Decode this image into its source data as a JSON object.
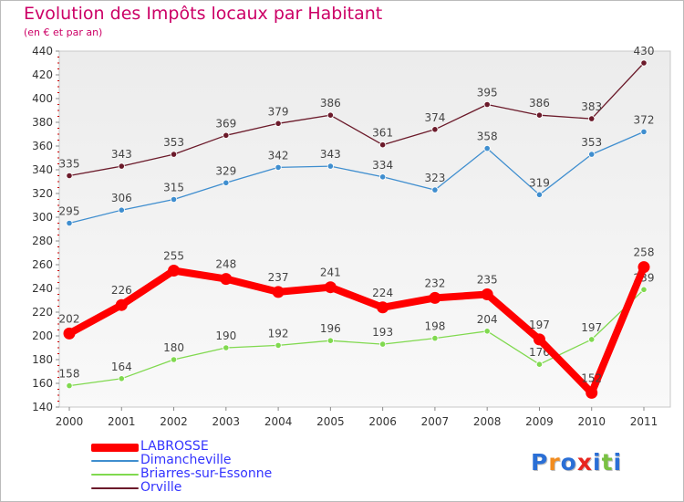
{
  "chart_data": {
    "type": "line",
    "title": "Evolution des Impôts locaux par Habitant",
    "subtitle": "(en € et par an)",
    "xlabel": "",
    "ylabel": "",
    "categories": [
      "2000",
      "2001",
      "2002",
      "2003",
      "2004",
      "2005",
      "2006",
      "2007",
      "2008",
      "2009",
      "2010",
      "2011"
    ],
    "ylim": [
      140,
      440
    ],
    "yticks": [
      140,
      160,
      180,
      200,
      220,
      240,
      260,
      280,
      300,
      320,
      340,
      360,
      380,
      400,
      420,
      440
    ],
    "grid": false,
    "legend_position": "bottom-left",
    "series": [
      {
        "name": "LABROSSE",
        "color": "#ff0000",
        "values": [
          202,
          226,
          255,
          248,
          237,
          241,
          224,
          232,
          235,
          197,
          152,
          258
        ]
      },
      {
        "name": "Dimancheville",
        "color": "#3f8ecf",
        "values": [
          295,
          306,
          315,
          329,
          342,
          343,
          334,
          323,
          358,
          319,
          353,
          372
        ]
      },
      {
        "name": "Briarres-sur-Essonne",
        "color": "#80d94f",
        "values": [
          158,
          164,
          180,
          190,
          192,
          196,
          193,
          198,
          204,
          176,
          197,
          239
        ]
      },
      {
        "name": "Orville",
        "color": "#6b1a2a",
        "values": [
          335,
          343,
          353,
          369,
          379,
          386,
          361,
          374,
          395,
          386,
          383,
          430
        ]
      }
    ]
  },
  "logo": {
    "letters": [
      "P",
      "r",
      "o",
      "x",
      "i",
      "t",
      "i"
    ],
    "colors": [
      "#2a6fd6",
      "#f28c1e",
      "#2a6fd6",
      "#e8251e",
      "#2a6fd6",
      "#79c142",
      "#2a6fd6"
    ]
  }
}
